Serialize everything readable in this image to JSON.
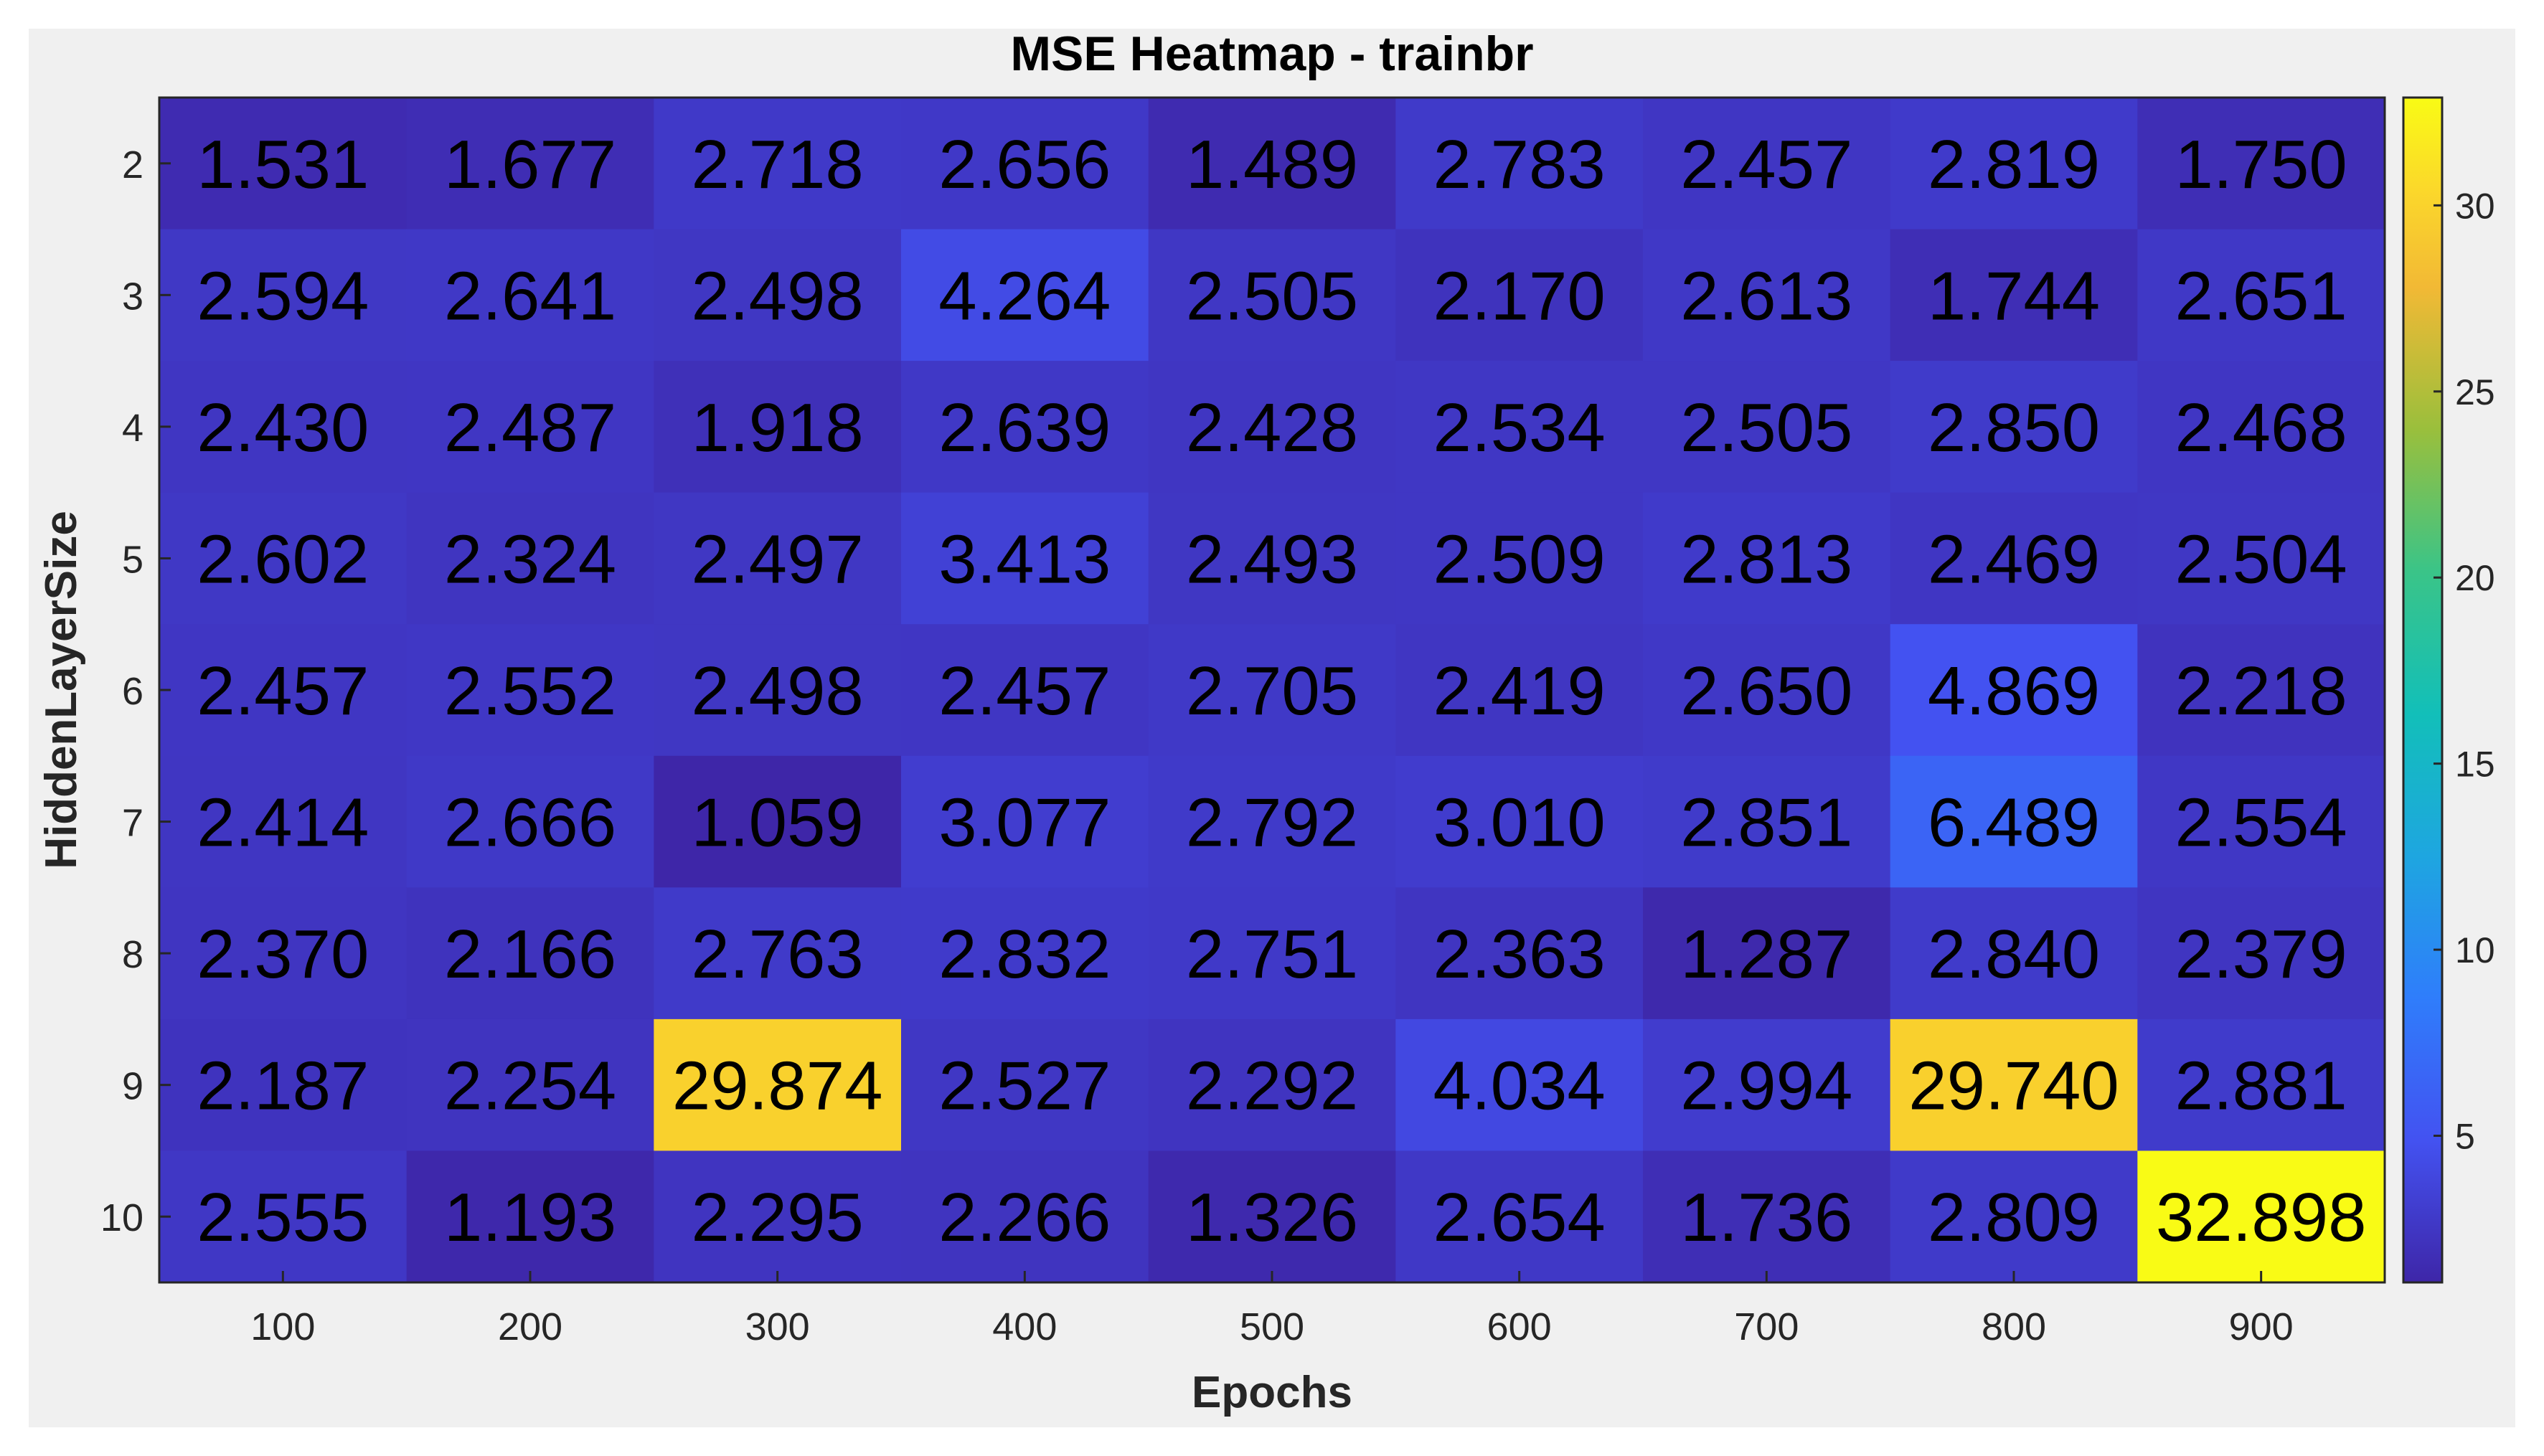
{
  "chart_data": {
    "type": "heatmap",
    "title": "MSE Heatmap - trainbr",
    "xlabel": "Epochs",
    "ylabel": "HiddenLayerSize",
    "x_categories": [
      "100",
      "200",
      "300",
      "400",
      "500",
      "600",
      "700",
      "800",
      "900"
    ],
    "y_categories": [
      "2",
      "3",
      "4",
      "5",
      "6",
      "7",
      "8",
      "9",
      "10"
    ],
    "values": [
      [
        "1.531",
        "1.677",
        "2.718",
        "2.656",
        "1.489",
        "2.783",
        "2.457",
        "2.819",
        "1.750"
      ],
      [
        "2.594",
        "2.641",
        "2.498",
        "4.264",
        "2.505",
        "2.170",
        "2.613",
        "1.744",
        "2.651"
      ],
      [
        "2.430",
        "2.487",
        "1.918",
        "2.639",
        "2.428",
        "2.534",
        "2.505",
        "2.850",
        "2.468"
      ],
      [
        "2.602",
        "2.324",
        "2.497",
        "3.413",
        "2.493",
        "2.509",
        "2.813",
        "2.469",
        "2.504"
      ],
      [
        "2.457",
        "2.552",
        "2.498",
        "2.457",
        "2.705",
        "2.419",
        "2.650",
        "4.869",
        "2.218"
      ],
      [
        "2.414",
        "2.666",
        "1.059",
        "3.077",
        "2.792",
        "3.010",
        "2.851",
        "6.489",
        "2.554"
      ],
      [
        "2.370",
        "2.166",
        "2.763",
        "2.832",
        "2.751",
        "2.363",
        "1.287",
        "2.840",
        "2.379"
      ],
      [
        "2.187",
        "2.254",
        "29.874",
        "2.527",
        "2.292",
        "4.034",
        "2.994",
        "29.740",
        "2.881"
      ],
      [
        "2.555",
        "1.193",
        "2.295",
        "2.266",
        "1.326",
        "2.654",
        "1.736",
        "2.809",
        "32.898"
      ]
    ],
    "colorbar": {
      "colormap": "parula",
      "range": [
        1.059,
        32.898
      ],
      "ticks": [
        "5",
        "10",
        "15",
        "20",
        "25",
        "30"
      ]
    },
    "colors": {
      "figure_background": "#f0f0f0",
      "axes_border": "#262626",
      "text": "#262626",
      "cell_text": "#000000"
    }
  }
}
